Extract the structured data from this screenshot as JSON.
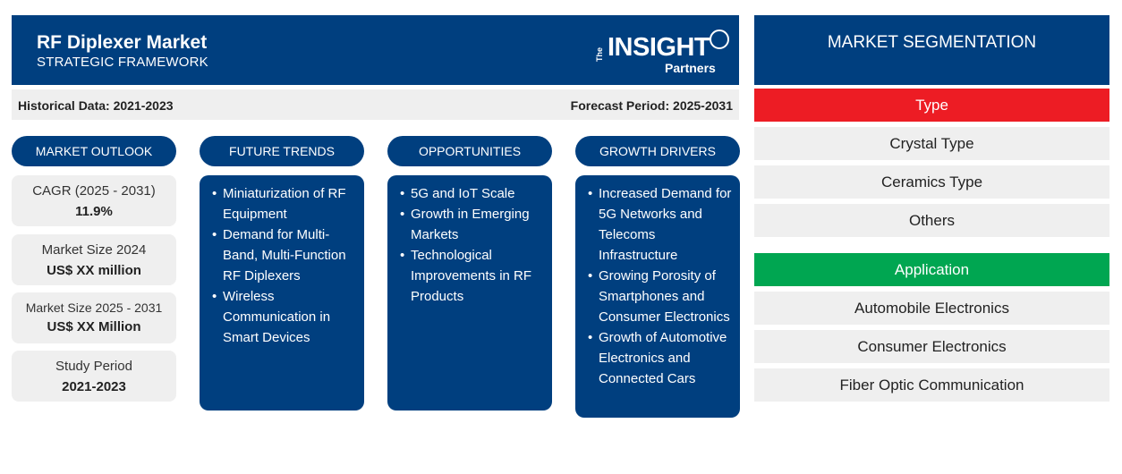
{
  "header": {
    "title": "RF Diplexer Market",
    "subtitle": "STRATEGIC FRAMEWORK",
    "logo": {
      "the": "The",
      "insight": "INSIGHT",
      "partners": "Partners"
    }
  },
  "periods": {
    "historical": "Historical Data: 2021-2023",
    "forecast": "Forecast Period: 2025-2031"
  },
  "columns": {
    "outlook": "MARKET OUTLOOK",
    "trends": "FUTURE TRENDS",
    "opportunities": "OPPORTUNITIES",
    "drivers": "GROWTH DRIVERS"
  },
  "outlook": [
    {
      "label": "CAGR (2025 - 2031)",
      "value": "11.9%"
    },
    {
      "label": "Market Size 2024",
      "value": "US$ XX million"
    },
    {
      "label": "Market Size 2025 - 2031",
      "value": "US$ XX Million"
    },
    {
      "label": "Study Period",
      "value": "2021-2023"
    }
  ],
  "trends": [
    "Miniaturization of RF Equipment",
    "Demand for Multi-Band, Multi-Function RF Diplexers",
    "Wireless Communication in Smart Devices"
  ],
  "opportunities": [
    "5G and IoT Scale",
    "Growth in Emerging Markets",
    "Technological Improvements in RF Products"
  ],
  "drivers": [
    "Increased Demand for 5G Networks and Telecoms Infrastructure",
    "Growing Porosity of Smartphones and Consumer Electronics",
    "Growth of Automotive Electronics and Connected Cars"
  ],
  "segmentation": {
    "title": "MARKET SEGMENTATION",
    "type": {
      "label": "Type",
      "color": "#ed1c24",
      "items": [
        "Crystal Type",
        "Ceramics Type",
        "Others"
      ]
    },
    "application": {
      "label": "Application",
      "color": "#00a651",
      "items": [
        "Automobile Electronics",
        "Consumer Electronics",
        "Fiber Optic Communication"
      ]
    }
  }
}
